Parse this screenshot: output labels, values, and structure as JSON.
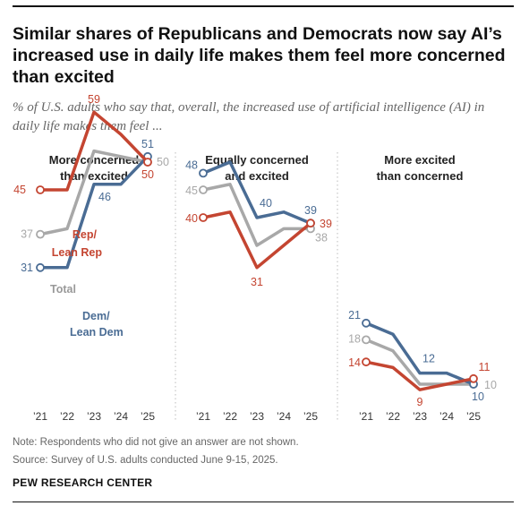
{
  "title": "Similar shares of Republicans and Democrats now say AI’s increased use in daily life makes them feel more concerned than excited",
  "subtitle": "% of U.S. adults who say that, overall, the increased use of artificial intelligence (AI) in daily life makes them feel ...",
  "note": "Note: Respondents who did not give an answer are not shown.",
  "source": "Source: Survey of U.S. adults conducted June 9-15, 2025.",
  "org": "PEW RESEARCH CENTER",
  "colors": {
    "rep": "#c44531",
    "dem": "#4a6c94",
    "total": "#a8a8a8"
  },
  "chart_data": {
    "type": "line",
    "x": [
      "’21",
      "’22",
      "’23",
      "’24",
      "’25"
    ],
    "ylim": [
      0,
      70
    ],
    "series_labels": {
      "rep": [
        "Rep/",
        "Lean Rep"
      ],
      "total": [
        "Total"
      ],
      "dem": [
        "Dem/",
        "Lean Dem"
      ]
    },
    "panels": [
      {
        "title": [
          "More concerned",
          "than excited"
        ],
        "series": [
          {
            "key": "rep",
            "values": [
              45,
              45,
              59,
              55,
              50
            ],
            "labeled": [
              45,
              null,
              59,
              null,
              50
            ]
          },
          {
            "key": "total",
            "values": [
              37,
              38,
              52,
              51,
              50
            ],
            "labeled": [
              37,
              null,
              null,
              null,
              50
            ]
          },
          {
            "key": "dem",
            "values": [
              31,
              31,
              46,
              46,
              51
            ],
            "labeled": [
              31,
              null,
              46,
              null,
              51
            ]
          }
        ]
      },
      {
        "title": [
          "Equally concerned",
          "and excited"
        ],
        "series": [
          {
            "key": "dem",
            "values": [
              48,
              50,
              40,
              41,
              39
            ],
            "labeled": [
              48,
              null,
              40,
              null,
              39
            ]
          },
          {
            "key": "total",
            "values": [
              45,
              46,
              35,
              38,
              38
            ],
            "labeled": [
              45,
              null,
              null,
              null,
              38
            ]
          },
          {
            "key": "rep",
            "values": [
              40,
              41,
              31,
              35,
              39
            ],
            "labeled": [
              40,
              null,
              31,
              null,
              39
            ]
          }
        ]
      },
      {
        "title": [
          "More excited",
          "than concerned"
        ],
        "series": [
          {
            "key": "dem",
            "values": [
              21,
              19,
              12,
              12,
              10
            ],
            "labeled": [
              21,
              null,
              12,
              null,
              10
            ]
          },
          {
            "key": "total",
            "values": [
              18,
              16,
              10,
              10,
              10
            ],
            "labeled": [
              18,
              null,
              null,
              null,
              10
            ]
          },
          {
            "key": "rep",
            "values": [
              14,
              13,
              9,
              10,
              11
            ],
            "labeled": [
              14,
              null,
              9,
              null,
              11
            ]
          }
        ]
      }
    ]
  }
}
